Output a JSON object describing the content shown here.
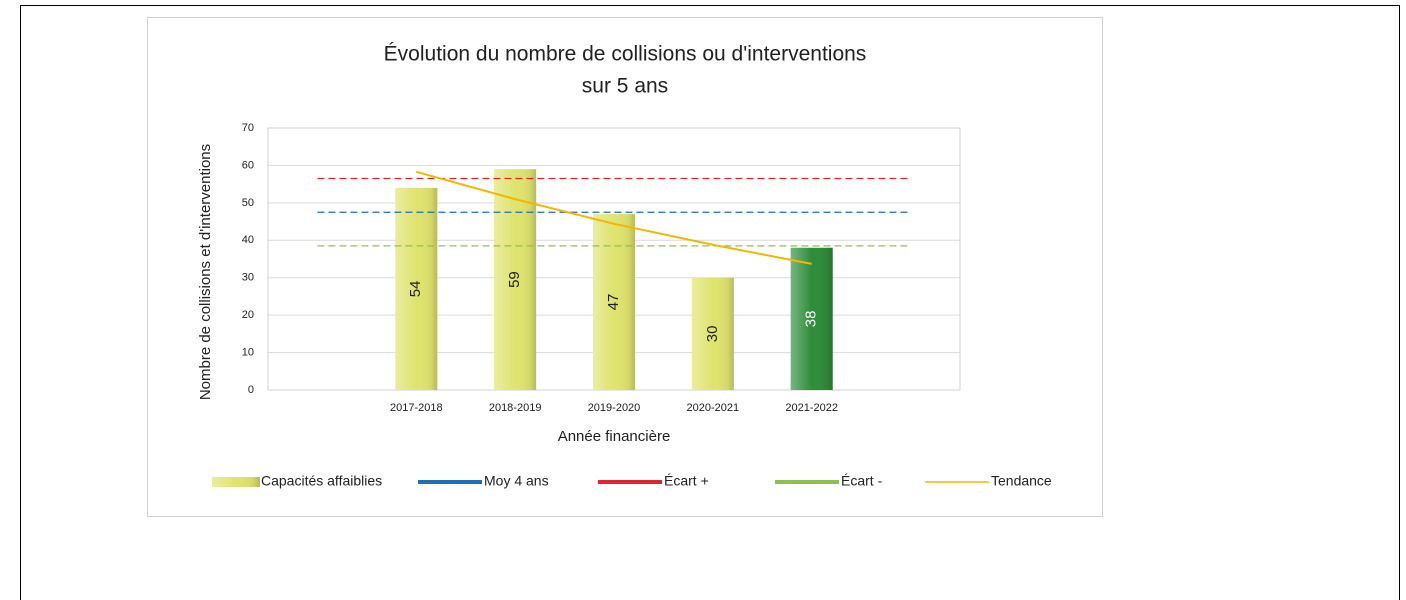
{
  "chart_data": {
    "type": "bar",
    "title": [
      "Évolution du nombre de collisions ou d'interventions",
      "sur 5 ans"
    ],
    "x_label": "Année financière",
    "y_label": "Nombre de collisions et d'interventions",
    "categories": [
      null,
      "2017-2018",
      "2018-2019",
      "2019-2020",
      "2020-2021",
      "2021-2022",
      null
    ],
    "series": [
      {
        "name": "Capacités affaiblies",
        "type": "bar",
        "color": "#dfe36e",
        "colors": [
          null,
          "#dfe36e",
          "#dfe36e",
          "#dfe36e",
          "#dfe36e",
          "#2f8c3b",
          null
        ],
        "values": [
          null,
          54,
          59,
          47,
          30,
          38,
          null
        ]
      },
      {
        "name": "Moy 4 ans",
        "type": "line",
        "color": "#1f6fb5",
        "dashed": true,
        "values": [
          47.5,
          47.5,
          47.5,
          47.5,
          47.5,
          47.5,
          47.5
        ]
      },
      {
        "name": "Écart +",
        "type": "line",
        "color": "#e0262b",
        "dashed": true,
        "values": [
          56.5,
          56.5,
          56.5,
          56.5,
          56.5,
          56.5,
          56.5
        ]
      },
      {
        "name": "Écart -",
        "type": "line",
        "color": "#8cc152",
        "dashed": true,
        "values": [
          38.5,
          38.5,
          38.5,
          38.5,
          38.5,
          38.5,
          38.5
        ]
      },
      {
        "name": "Tendance",
        "type": "line",
        "color": "#f2b705",
        "dashed": false,
        "values": [
          null,
          58.3,
          51,
          44.4,
          38.8,
          33.7,
          null
        ]
      }
    ],
    "ylim": [
      0,
      70
    ],
    "yticks": [
      0,
      10,
      20,
      30,
      40,
      50,
      60,
      70
    ],
    "grid": true,
    "legend": "bottom"
  }
}
